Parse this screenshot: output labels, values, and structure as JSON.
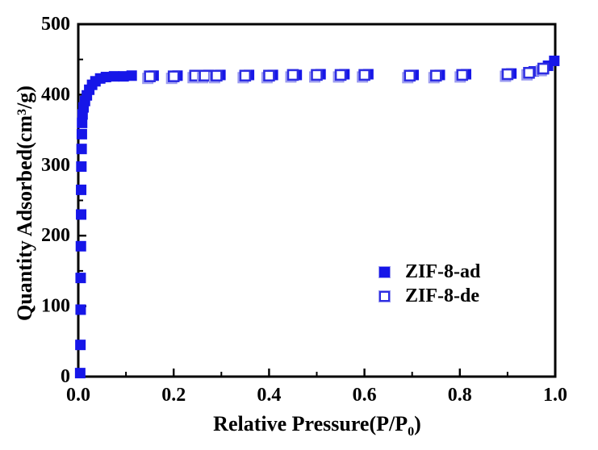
{
  "figure": {
    "background": "#ffffff"
  },
  "legend": {
    "entries": [
      {
        "label": "ZIF-8-ad",
        "marker": "filled-square"
      },
      {
        "label": "ZIF-8-de",
        "marker": "open-square"
      }
    ]
  },
  "chart_data": {
    "type": "scatter",
    "title": "",
    "xlabel": "Relative Pressure(P/P0)",
    "xlabel_parts": {
      "main": "Relative Pressure(P/P",
      "sub": "0",
      "end": ")"
    },
    "ylabel": "Quantity Adsorbed(cm3/g)",
    "ylabel_parts": {
      "main": "Quantity Adsorbed(cm",
      "sup": "3",
      "end": "/g)"
    },
    "xlim": [
      0.0,
      1.0
    ],
    "ylim": [
      0,
      500
    ],
    "grid": false,
    "legend_position": "center-right",
    "x_major_ticks": {
      "values": [
        0.0,
        0.2,
        0.4,
        0.6,
        0.8,
        1.0
      ],
      "labels": [
        "0.0",
        "0.2",
        "0.4",
        "0.6",
        "0.8",
        "1.0"
      ]
    },
    "x_minor_ticks": [
      0.1,
      0.3,
      0.5,
      0.7,
      0.9
    ],
    "y_major_ticks": {
      "values": [
        0,
        100,
        200,
        300,
        400,
        500
      ],
      "labels": [
        "0",
        "100",
        "200",
        "300",
        "400",
        "500"
      ]
    },
    "y_minor_ticks": [
      50,
      150,
      250,
      350,
      450
    ],
    "colors": {
      "marker_blue": "#1616e8",
      "open_border_blue": "#2d2de2",
      "open_halo_blue": "#9a9af0",
      "axis": "#000000"
    },
    "series": [
      {
        "name": "ZIF-8-ad",
        "marker": "filled-square",
        "points": [
          [
            0.004,
            5
          ],
          [
            0.0045,
            45
          ],
          [
            0.005,
            95
          ],
          [
            0.005,
            140
          ],
          [
            0.0055,
            185
          ],
          [
            0.006,
            230
          ],
          [
            0.006,
            265
          ],
          [
            0.0065,
            298
          ],
          [
            0.007,
            323
          ],
          [
            0.0075,
            344
          ],
          [
            0.008,
            360
          ],
          [
            0.009,
            372
          ],
          [
            0.011,
            382
          ],
          [
            0.014,
            391
          ],
          [
            0.018,
            399
          ],
          [
            0.023,
            407
          ],
          [
            0.029,
            414
          ],
          [
            0.036,
            419
          ],
          [
            0.046,
            423
          ],
          [
            0.058,
            425
          ],
          [
            0.075,
            426
          ],
          [
            0.095,
            426
          ],
          [
            0.112,
            427
          ],
          [
            0.158,
            427
          ],
          [
            0.208,
            427
          ],
          [
            0.253,
            427
          ],
          [
            0.273,
            428
          ],
          [
            0.298,
            428
          ],
          [
            0.358,
            428
          ],
          [
            0.408,
            428
          ],
          [
            0.458,
            428
          ],
          [
            0.508,
            429
          ],
          [
            0.558,
            429
          ],
          [
            0.608,
            429
          ],
          [
            0.703,
            428
          ],
          [
            0.758,
            428
          ],
          [
            0.813,
            429
          ],
          [
            0.908,
            430
          ],
          [
            0.955,
            433
          ],
          [
            0.985,
            441
          ],
          [
            0.998,
            448
          ]
        ]
      },
      {
        "name": "ZIF-8-de",
        "marker": "open-square",
        "points": [
          [
            0.15,
            426
          ],
          [
            0.2,
            426
          ],
          [
            0.245,
            427
          ],
          [
            0.265,
            427
          ],
          [
            0.29,
            427
          ],
          [
            0.35,
            427
          ],
          [
            0.4,
            427
          ],
          [
            0.45,
            428
          ],
          [
            0.5,
            428
          ],
          [
            0.55,
            428
          ],
          [
            0.6,
            428
          ],
          [
            0.695,
            427
          ],
          [
            0.75,
            427
          ],
          [
            0.805,
            428
          ],
          [
            0.9,
            429
          ],
          [
            0.945,
            431
          ],
          [
            0.975,
            437
          ]
        ]
      }
    ]
  }
}
